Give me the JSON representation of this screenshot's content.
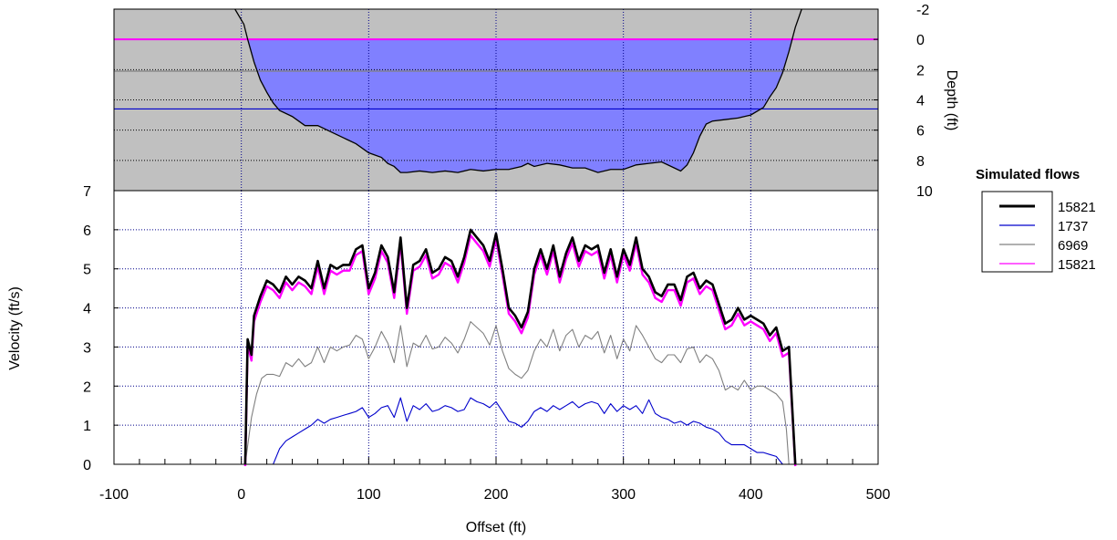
{
  "chart_data": {
    "type": "line",
    "xlabel": "Offset (ft)",
    "xlim": [
      -100,
      500
    ],
    "xticks": [
      -100,
      0,
      100,
      200,
      300,
      400,
      500
    ],
    "xtick_labels": [
      "-100",
      "0",
      "100",
      "200",
      "300",
      "400",
      "500"
    ],
    "velocity_panel": {
      "ylabel": "Velocity (ft/s)",
      "ylim": [
        0,
        7
      ],
      "yticks": [
        0,
        1,
        2,
        3,
        4,
        5,
        6,
        7
      ],
      "ytick_labels": [
        "0",
        "1",
        "2",
        "3",
        "4",
        "5",
        "6",
        "7"
      ],
      "grid": true
    },
    "depth_panel": {
      "ylabel": "Depth (ft)",
      "ylim": [
        -2,
        10
      ],
      "yticks": [
        -2,
        0,
        2,
        4,
        6,
        8,
        10
      ],
      "ytick_labels": [
        "-2",
        "0",
        "2",
        "4",
        "6",
        "8",
        "10"
      ],
      "inverted": true,
      "background_color": "#c0c0c0",
      "water_color": "#8080ff",
      "bed_profile": {
        "x": [
          -5,
          2,
          5,
          10,
          15,
          20,
          25,
          30,
          40,
          50,
          60,
          70,
          80,
          90,
          100,
          110,
          115,
          120,
          125,
          130,
          140,
          150,
          160,
          170,
          180,
          190,
          200,
          210,
          220,
          225,
          230,
          240,
          250,
          260,
          270,
          280,
          290,
          300,
          310,
          320,
          330,
          340,
          345,
          350,
          355,
          360,
          365,
          370,
          380,
          390,
          400,
          410,
          415,
          420,
          425,
          430,
          435,
          440
        ],
        "y": [
          -2,
          -1,
          0,
          1.5,
          2.7,
          3.5,
          4.2,
          4.7,
          5.1,
          5.7,
          5.7,
          6.1,
          6.5,
          6.9,
          7.5,
          7.8,
          8.2,
          8.4,
          8.8,
          8.8,
          8.7,
          8.8,
          8.7,
          8.8,
          8.6,
          8.7,
          8.6,
          8.6,
          8.4,
          8.2,
          8.4,
          8.2,
          8.3,
          8.5,
          8.5,
          8.8,
          8.6,
          8.6,
          8.3,
          8.2,
          8.1,
          8.5,
          8.7,
          8.3,
          7.5,
          6.4,
          5.6,
          5.4,
          5.3,
          5.2,
          5.0,
          4.5,
          3.8,
          3.2,
          2.2,
          0.8,
          -0.8,
          -2
        ]
      },
      "water_levels": [
        {
          "name": "15821",
          "depth": 0.0,
          "color": "#ff00ff"
        },
        {
          "name": "1737",
          "depth": 4.6,
          "color": "#0000cc"
        },
        {
          "name": "6969",
          "depth": 2.1,
          "color": "#808080"
        }
      ]
    },
    "legend": {
      "title": "Simulated flows",
      "placement": "right"
    },
    "series": [
      {
        "name": "15821",
        "color": "#000000",
        "x": [
          3,
          5,
          8,
          10,
          15,
          20,
          25,
          30,
          35,
          40,
          45,
          50,
          55,
          60,
          65,
          70,
          75,
          80,
          85,
          90,
          95,
          100,
          105,
          110,
          115,
          120,
          125,
          130,
          135,
          140,
          145,
          150,
          155,
          160,
          165,
          170,
          175,
          180,
          185,
          190,
          195,
          200,
          205,
          210,
          215,
          220,
          225,
          230,
          235,
          240,
          245,
          250,
          255,
          260,
          265,
          270,
          275,
          280,
          285,
          290,
          295,
          300,
          305,
          310,
          315,
          320,
          325,
          330,
          335,
          340,
          345,
          350,
          355,
          360,
          365,
          370,
          375,
          380,
          385,
          390,
          395,
          400,
          405,
          410,
          415,
          420,
          425,
          430,
          435
        ],
        "y": [
          0.0,
          3.2,
          2.8,
          3.8,
          4.3,
          4.7,
          4.6,
          4.4,
          4.8,
          4.6,
          4.8,
          4.7,
          4.5,
          5.2,
          4.5,
          5.1,
          5.0,
          5.1,
          5.1,
          5.5,
          5.6,
          4.5,
          4.9,
          5.6,
          5.3,
          4.4,
          5.8,
          4.0,
          5.1,
          5.2,
          5.5,
          4.9,
          5.0,
          5.3,
          5.2,
          4.8,
          5.3,
          6.0,
          5.8,
          5.6,
          5.2,
          5.9,
          5.0,
          4.0,
          3.8,
          3.5,
          3.9,
          5.0,
          5.5,
          5.0,
          5.6,
          4.8,
          5.4,
          5.8,
          5.2,
          5.6,
          5.5,
          5.6,
          4.9,
          5.5,
          4.8,
          5.5,
          5.1,
          5.8,
          5.0,
          4.8,
          4.4,
          4.3,
          4.6,
          4.6,
          4.2,
          4.8,
          4.9,
          4.5,
          4.7,
          4.6,
          4.1,
          3.6,
          3.7,
          4.0,
          3.7,
          3.8,
          3.7,
          3.6,
          3.3,
          3.5,
          2.9,
          3.0,
          0.0
        ]
      },
      {
        "name": "1737",
        "color": "#0000cc",
        "x": [
          25,
          30,
          35,
          40,
          45,
          50,
          55,
          60,
          65,
          70,
          75,
          80,
          85,
          90,
          95,
          100,
          105,
          110,
          115,
          120,
          125,
          130,
          135,
          140,
          145,
          150,
          155,
          160,
          165,
          170,
          175,
          180,
          185,
          190,
          195,
          200,
          205,
          210,
          215,
          220,
          225,
          230,
          235,
          240,
          245,
          250,
          255,
          260,
          265,
          270,
          275,
          280,
          285,
          290,
          295,
          300,
          305,
          310,
          315,
          320,
          325,
          330,
          335,
          340,
          345,
          350,
          355,
          360,
          365,
          370,
          375,
          380,
          385,
          390,
          395,
          400,
          405,
          410,
          415,
          420,
          425
        ],
        "y": [
          0.0,
          0.4,
          0.6,
          0.7,
          0.8,
          0.9,
          1.0,
          1.15,
          1.05,
          1.15,
          1.2,
          1.25,
          1.3,
          1.35,
          1.45,
          1.2,
          1.3,
          1.45,
          1.5,
          1.2,
          1.7,
          1.1,
          1.5,
          1.4,
          1.55,
          1.35,
          1.4,
          1.5,
          1.45,
          1.35,
          1.4,
          1.7,
          1.6,
          1.55,
          1.45,
          1.6,
          1.35,
          1.1,
          1.05,
          0.95,
          1.1,
          1.35,
          1.45,
          1.35,
          1.5,
          1.4,
          1.5,
          1.6,
          1.45,
          1.55,
          1.6,
          1.55,
          1.3,
          1.55,
          1.35,
          1.5,
          1.4,
          1.5,
          1.3,
          1.65,
          1.3,
          1.2,
          1.15,
          1.05,
          1.1,
          1.0,
          1.1,
          1.05,
          0.95,
          0.9,
          0.8,
          0.6,
          0.5,
          0.5,
          0.5,
          0.4,
          0.3,
          0.3,
          0.25,
          0.2,
          0.0
        ]
      },
      {
        "name": "6969",
        "color": "#808080",
        "x": [
          3,
          8,
          12,
          16,
          20,
          25,
          30,
          35,
          40,
          45,
          50,
          55,
          60,
          65,
          70,
          75,
          80,
          85,
          90,
          95,
          100,
          105,
          110,
          115,
          120,
          125,
          130,
          135,
          140,
          145,
          150,
          155,
          160,
          165,
          170,
          175,
          180,
          185,
          190,
          195,
          200,
          205,
          210,
          215,
          220,
          225,
          230,
          235,
          240,
          245,
          250,
          255,
          260,
          265,
          270,
          275,
          280,
          285,
          290,
          295,
          300,
          305,
          310,
          315,
          320,
          325,
          330,
          335,
          340,
          345,
          350,
          355,
          360,
          365,
          370,
          375,
          380,
          385,
          390,
          395,
          400,
          405,
          410,
          415,
          420,
          425,
          428,
          430
        ],
        "y": [
          0.0,
          1.2,
          1.8,
          2.2,
          2.3,
          2.3,
          2.25,
          2.6,
          2.5,
          2.7,
          2.5,
          2.6,
          3.0,
          2.6,
          3.0,
          2.9,
          3.0,
          3.05,
          3.3,
          3.2,
          2.7,
          3.0,
          3.4,
          3.1,
          2.6,
          3.55,
          2.5,
          3.1,
          3.0,
          3.3,
          2.95,
          3.0,
          3.25,
          3.1,
          2.85,
          3.2,
          3.65,
          3.5,
          3.35,
          3.05,
          3.55,
          2.9,
          2.45,
          2.3,
          2.2,
          2.4,
          2.9,
          3.2,
          3.0,
          3.45,
          2.9,
          3.3,
          3.45,
          3.0,
          3.3,
          3.2,
          3.4,
          2.85,
          3.3,
          2.7,
          3.2,
          2.9,
          3.55,
          3.3,
          3.0,
          2.7,
          2.6,
          2.8,
          2.8,
          2.6,
          2.95,
          3.0,
          2.6,
          2.8,
          2.7,
          2.4,
          1.9,
          2.0,
          1.9,
          2.15,
          1.9,
          2.0,
          2.0,
          1.9,
          1.8,
          1.6,
          0.9,
          0.0
        ]
      },
      {
        "name": "15821",
        "color": "#ff00ff",
        "x": [
          3,
          5,
          8,
          10,
          15,
          20,
          25,
          30,
          35,
          40,
          45,
          50,
          55,
          60,
          65,
          70,
          75,
          80,
          85,
          90,
          95,
          100,
          105,
          110,
          115,
          120,
          125,
          130,
          135,
          140,
          145,
          150,
          155,
          160,
          165,
          170,
          175,
          180,
          185,
          190,
          195,
          200,
          205,
          210,
          215,
          220,
          225,
          230,
          235,
          240,
          245,
          250,
          255,
          260,
          265,
          270,
          275,
          280,
          285,
          290,
          295,
          300,
          305,
          310,
          315,
          320,
          325,
          330,
          335,
          340,
          345,
          350,
          355,
          360,
          365,
          370,
          375,
          380,
          385,
          390,
          395,
          400,
          405,
          410,
          415,
          420,
          425,
          430,
          435
        ],
        "y": [
          0.0,
          3.1,
          2.7,
          3.7,
          4.2,
          4.6,
          4.5,
          4.3,
          4.7,
          4.5,
          4.7,
          4.6,
          4.4,
          5.1,
          4.4,
          5.0,
          4.9,
          5.0,
          5.0,
          5.4,
          5.5,
          4.4,
          4.8,
          5.5,
          5.2,
          4.3,
          5.7,
          3.9,
          5.0,
          5.1,
          5.4,
          4.8,
          4.9,
          5.2,
          5.1,
          4.7,
          5.2,
          5.9,
          5.7,
          5.5,
          5.1,
          5.8,
          4.9,
          3.9,
          3.7,
          3.4,
          3.8,
          4.9,
          5.4,
          4.9,
          5.5,
          4.7,
          5.3,
          5.7,
          5.1,
          5.5,
          5.4,
          5.5,
          4.8,
          5.4,
          4.7,
          5.4,
          5.0,
          5.7,
          4.9,
          4.7,
          4.3,
          4.2,
          4.5,
          4.5,
          4.1,
          4.7,
          4.8,
          4.4,
          4.6,
          4.5,
          4.0,
          3.5,
          3.6,
          3.9,
          3.6,
          3.7,
          3.6,
          3.5,
          3.2,
          3.4,
          2.8,
          2.9,
          0.0
        ]
      }
    ]
  }
}
